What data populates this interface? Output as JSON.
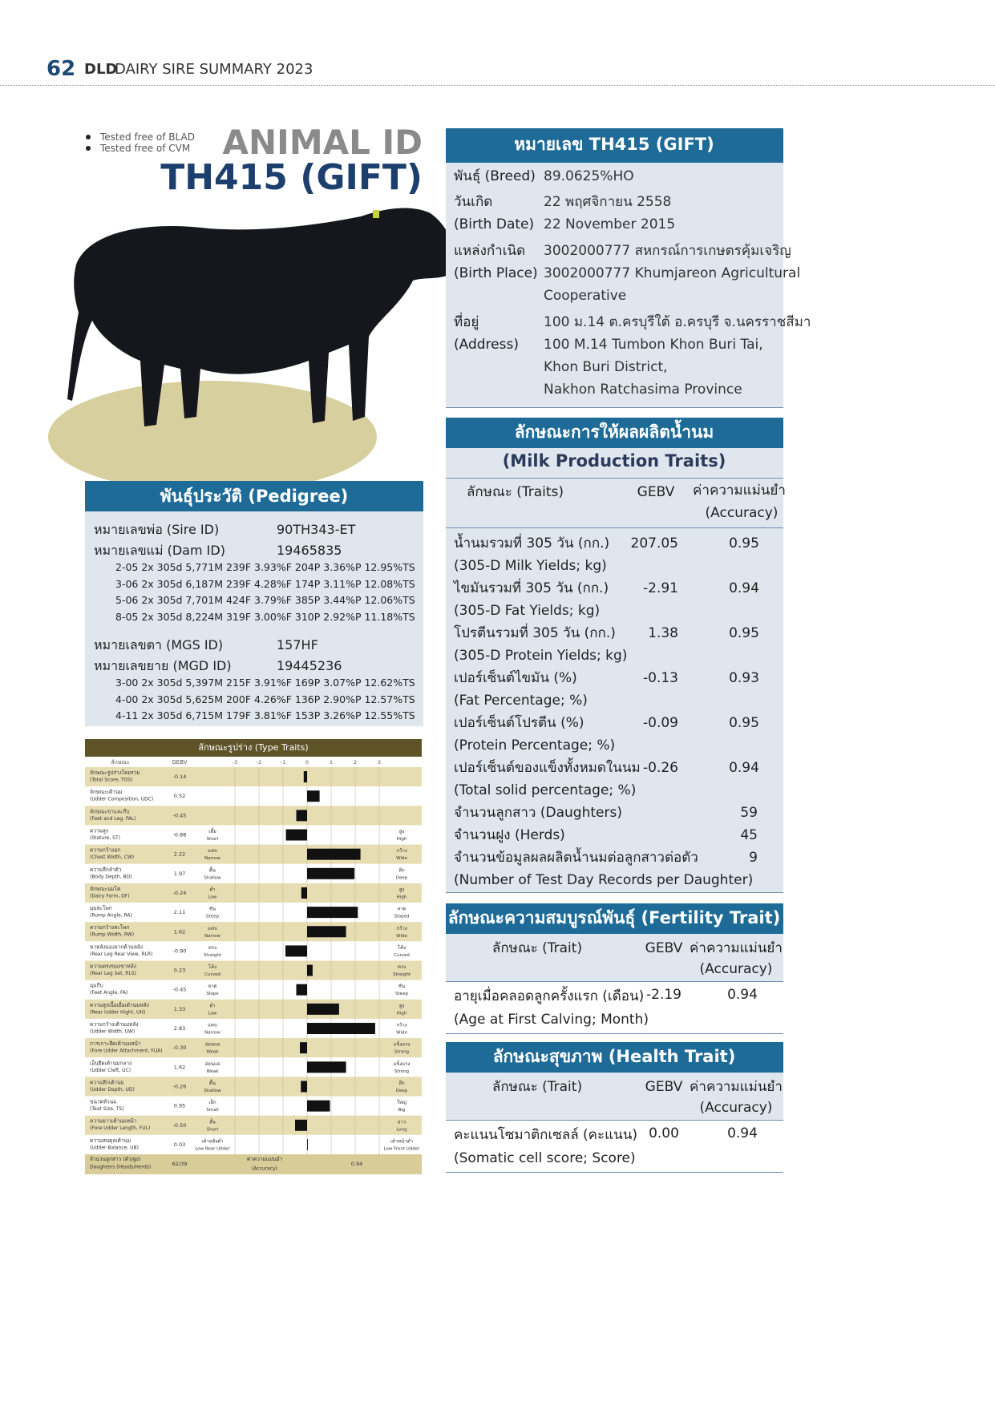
{
  "header": {
    "page_number": "62",
    "brand": "DLD",
    "title": "DAIRY SIRE SUMMARY 2023"
  },
  "notes": [
    "Tested free of BLAD",
    "Tested free of CVM"
  ],
  "animal_id_label": "ANIMAL ID",
  "animal_id": "TH415 (GIFT)",
  "info": {
    "title": "หมายเลข TH415 (GIFT)",
    "rows": [
      {
        "label": [
          "พันธุ์ (Breed)"
        ],
        "value": [
          "89.0625%HO"
        ]
      },
      {
        "label": [
          "วันเกิด",
          "(Birth Date)"
        ],
        "value": [
          "22 พฤศจิกายน 2558",
          "22 November 2015"
        ]
      },
      {
        "label": [
          "แหล่งกำเนิด",
          "(Birth Place)"
        ],
        "value": [
          "3002000777 สหกรณ์การเกษตรคุ้มเจริญ",
          "3002000777 Khumjareon Agricultural",
          "Cooperative"
        ]
      },
      {
        "label": [
          "ที่อยู่",
          "(Address)"
        ],
        "value": [
          "100 ม.14 ต.ครบุรีใต้ อ.ครบุรี จ.นครราชสีมา",
          "100 M.14 Tumbon Khon Buri Tai,",
          "Khon Buri District,",
          "Nakhon Ratchasima Province"
        ]
      }
    ]
  },
  "milk": {
    "title": "ลักษณะการให้ผลผลิตน้ำนม",
    "subtitle": "(Milk Production Traits)",
    "columns": [
      "ลักษณะ (Traits)",
      "GEBV",
      "ค่าความแม่นยำ",
      "(Accuracy)"
    ],
    "rows": [
      {
        "th": "น้ำนมรวมที่ 305 วัน (กก.)",
        "en": "(305-D Milk Yields; kg)",
        "gebv": "207.05",
        "accuracy": "0.95"
      },
      {
        "th": "ไขมันรวมที่ 305 วัน (กก.)",
        "en": "(305-D Fat Yields; kg)",
        "gebv": "-2.91",
        "accuracy": "0.94"
      },
      {
        "th": "โปรตีนรวมที่ 305 วัน (กก.)",
        "en": "(305-D Protein Yields; kg)",
        "gebv": "1.38",
        "accuracy": "0.95"
      },
      {
        "th": "เปอร์เซ็นต์ไขมัน (%)",
        "en": "(Fat Percentage; %)",
        "gebv": "-0.13",
        "accuracy": "0.93"
      },
      {
        "th": "เปอร์เซ็นต์โปรตีน (%)",
        "en": "(Protein Percentage; %)",
        "gebv": "-0.09",
        "accuracy": "0.95"
      },
      {
        "th": "เปอร์เซ็นต์ของแข็งทั้งหมดในนม",
        "en": "(Total solid percentage; %)",
        "gebv": "-0.26",
        "accuracy": "0.94"
      }
    ],
    "counts": [
      {
        "label": [
          "จำนวนลูกสาว (Daughters)"
        ],
        "value": "59"
      },
      {
        "label": [
          "จำนวนฝูง (Herds)"
        ],
        "value": "45"
      },
      {
        "label": [
          "จำนวนข้อมูลผลผลิตน้ำนมต่อลูกสาวต่อตัว",
          "(Number of Test Day Records per Daughter)"
        ],
        "value": "9"
      }
    ]
  },
  "fertility": {
    "title": "ลักษณะความสมบูรณ์พันธุ์ (Fertility Trait)",
    "columns": [
      "ลักษณะ (Trait)",
      "GEBV",
      "ค่าความแม่นยำ",
      "(Accuracy)"
    ],
    "row": {
      "th": "อายุเมื่อคลอดลูกครั้งแรก (เดือน)",
      "en": "(Age at First Calving; Month)",
      "gebv": "-2.19",
      "accuracy": "0.94"
    }
  },
  "health": {
    "title": "ลักษณะสุขภาพ (Health Trait)",
    "columns": [
      "ลักษณะ (Trait)",
      "GEBV",
      "ค่าความแม่นยำ",
      "(Accuracy)"
    ],
    "row": {
      "th": "คะแนนโซมาติกเซลล์ (คะแนน)",
      "en": "(Somatic cell score; Score)",
      "gebv": "0.00",
      "accuracy": "0.94"
    }
  },
  "pedigree": {
    "title": "พันธุ์ประวัติ (Pedigree)",
    "sire_label": "หมายเลขพ่อ (Sire ID)",
    "sire": "90TH343-ET",
    "dam_label": "หมายเลขแม่ (Dam ID)",
    "dam": "19465835",
    "dam_records": [
      "2-05 2x 305d 5,771M 239F 3.93%F 204P 3.36%P 12.95%TS",
      "3-06 2x 305d 6,187M 239F 4.28%F 174P 3.11%P 12.08%TS",
      "5-06 2x 305d 7,701M 424F 3.79%F 385P 3.44%P 12.06%TS",
      "8-05 2x 305d 8,224M 319F 3.00%F 310P 2.92%P 11.18%TS"
    ],
    "mgs_label": "หมายเลขตา (MGS ID)",
    "mgs": "157HF",
    "mgd_label": "หมายเลขยาย (MGD ID)",
    "mgd": "19445236",
    "mgd_records": [
      "3-00 2x 305d 5,397M 215F 3.91%F 169P 3.07%P 12.62%TS",
      "4-00 2x 305d 5,625M 200F 4.26%F 136P 2.90%P 12.57%TS",
      "4-11 2x 305d 6,715M 179F 3.81%F 153P 3.26%P 12.55%TS"
    ]
  },
  "type_traits": {
    "title": "ลักษณะรูปร่าง (Type Traits)",
    "columns": [
      "ลักษณะ",
      "GEBV"
    ],
    "xticks": [
      -3,
      -2,
      -1,
      0,
      1,
      2,
      3
    ],
    "values": [
      -0.14,
      0.52,
      -0.45,
      -0.88,
      2.22,
      1.97,
      -0.24,
      2.11,
      1.62,
      -0.9,
      0.23,
      -0.45,
      1.33,
      2.83,
      -0.3,
      1.62,
      -0.26,
      0.95,
      -0.5,
      0.03
    ],
    "value_labels": [
      "-0.14",
      "0.52",
      "-0.45",
      "-0.88",
      "2.22",
      "1.97",
      "-0.24",
      "2.11",
      "1.62",
      "-0.90",
      "0.23",
      "-0.45",
      "1.33",
      "2.83",
      "-0.30",
      "1.62",
      "-0.26",
      "0.95",
      "-0.50",
      "0.03"
    ],
    "rows": [
      {
        "th": "ลักษณะรูปร่างโดยรวม",
        "en": "(Total Score, TOS)"
      },
      {
        "th": "ลักษณะเต้านม",
        "en": "(Udder Composition, UDC)"
      },
      {
        "th": "ลักษณะขาและกีบ",
        "en": "(Feet and Leg, FAL)"
      },
      {
        "th": "ความสูง",
        "en": "(Stature, ST)",
        "low_th": "เตี้ย",
        "low_en": "Short",
        "high_th": "สูง",
        "high_en": "High"
      },
      {
        "th": "ความกว้างอก",
        "en": "(Chest Width, CW)",
        "low_th": "แคบ",
        "low_en": "Narrow",
        "high_th": "กว้าง",
        "high_en": "Wide"
      },
      {
        "th": "ความลึกลำตัว",
        "en": "(Body Depth, BD)",
        "low_th": "ตื้น",
        "low_en": "Shallow",
        "high_th": "ลึก",
        "high_en": "Deep"
      },
      {
        "th": "ลักษณะนมโค",
        "en": "(Dairy Form, DF)",
        "low_th": "ต่ำ",
        "low_en": "Low",
        "high_th": "สูง",
        "high_en": "High"
      },
      {
        "th": "มุมสะโพก",
        "en": "(Rump Angle, RA)",
        "low_th": "ชัน",
        "low_en": "Steep",
        "high_th": "ลาด",
        "high_en": "Sloped"
      },
      {
        "th": "ความกว้างสะโพก",
        "en": "(Rump Width, RW)",
        "low_th": "แคบ",
        "low_en": "Narrow",
        "high_th": "กว้าง",
        "high_en": "Wide"
      },
      {
        "th": "ขาหลังมองจากด้านหลัง",
        "en": "(Rear Leg Rear View, RLR)",
        "low_th": "ตรง",
        "low_en": "Straight",
        "high_th": "โค้ง",
        "high_en": "Curved"
      },
      {
        "th": "ความตรงของขาหลัง",
        "en": "(Rear Leg Set, RLS)",
        "low_th": "โค้ง",
        "low_en": "Curved",
        "high_th": "ตรง",
        "high_en": "Straight"
      },
      {
        "th": "มุมกีบ",
        "en": "(Feet Angle, FA)",
        "low_th": "ลาด",
        "low_en": "Slope",
        "high_th": "ชัน",
        "high_en": "Steep"
      },
      {
        "th": "ความสูงเนื้อเยื่อเต้านมหลัง",
        "en": "(Rear Udder Hight, UH)",
        "low_th": "ต่ำ",
        "low_en": "Low",
        "high_th": "สูง",
        "high_en": "High"
      },
      {
        "th": "ความกว้างเต้านมหลัง",
        "en": "(Udder Width, UW)",
        "low_th": "แคบ",
        "low_en": "Narrow",
        "high_th": "กว้าง",
        "high_en": "Wide"
      },
      {
        "th": "การเกาะยึดเต้านมหน้า",
        "en": "(Fore Udder Attachment, FUA)",
        "low_th": "อ่อนแอ",
        "low_en": "Weak",
        "high_th": "แข็งแรง",
        "high_en": "Strong"
      },
      {
        "th": "เอ็นยึดเต้านมกลาง",
        "en": "(Udder Cleft, UC)",
        "low_th": "อ่อนแอ",
        "low_en": "Weak",
        "high_th": "แข็งแรง",
        "high_en": "Strong"
      },
      {
        "th": "ความลึกเต้านม",
        "en": "(Udder Depth, UD)",
        "low_th": "ตื้น",
        "low_en": "Shallow",
        "high_th": "ลึก",
        "high_en": "Deep"
      },
      {
        "th": "ขนาดหัวนม",
        "en": "(Teat Size, TS)",
        "low_th": "เล็ก",
        "low_en": "Small",
        "high_th": "ใหญ่",
        "high_en": "Big"
      },
      {
        "th": "ความยาวเต้านมหน้า",
        "en": "(Fore Udder Length, FUL)",
        "low_th": "สั้น",
        "low_en": "Short",
        "high_th": "ยาว",
        "high_en": "Long"
      },
      {
        "th": "ความสมดุลเต้านม",
        "en": "(Udder Balance, UB)",
        "low_th": "เต้าหลังต่ำ",
        "low_en": "Low Rear Udder",
        "high_th": "เต้าหน้าต่ำ",
        "high_en": "Low Front Udder"
      }
    ],
    "footer": {
      "daughters_th": "จำนวนลูกสาว (ตัว/ฝูง)",
      "daughters_en": "Daughters (Heads/Herds)",
      "daughters": "62/39",
      "accuracy_th": "ค่าความแม่นยำ",
      "accuracy_en": "(Accuracy)",
      "accuracy": "0.94"
    }
  }
}
